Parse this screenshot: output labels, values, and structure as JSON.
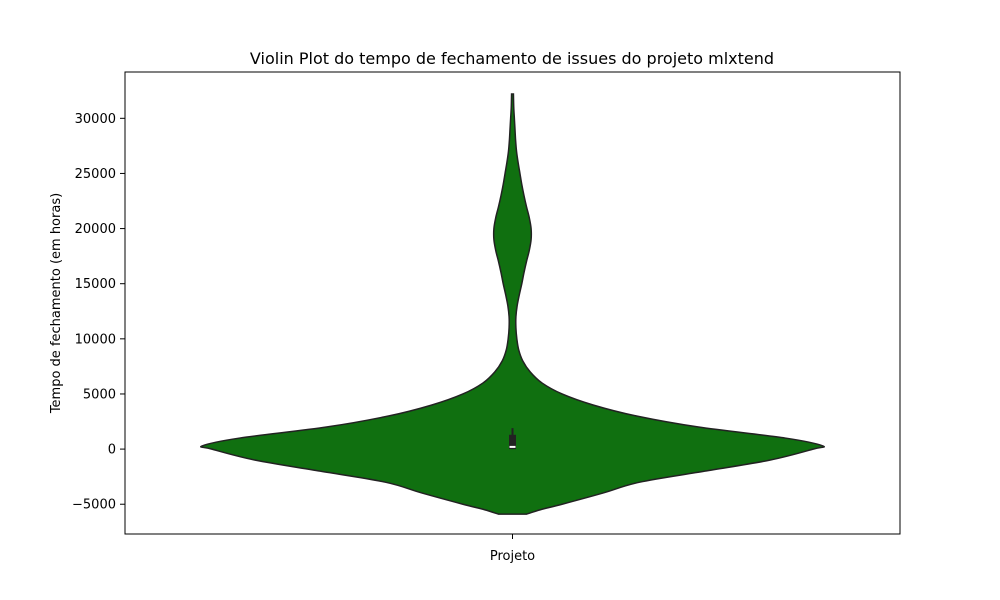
{
  "chart_data": {
    "type": "violin",
    "title": "Violin Plot do tempo de fechamento de issues do projeto mlxtend",
    "xlabel": "",
    "ylabel": "Tempo de fechamento (em horas)",
    "categories": [
      "Projeto"
    ],
    "ylim": [
      -7700,
      34200
    ],
    "yticks": [
      -5000,
      0,
      5000,
      10000,
      15000,
      20000,
      25000,
      30000
    ],
    "grid": false,
    "colors": {
      "fill": "#107010",
      "edge": "#222222",
      "box": "#222222",
      "median": "#ffffff"
    },
    "density_profile": [
      {
        "y": -5900,
        "width": 0.045
      },
      {
        "y": -5500,
        "width": 0.09
      },
      {
        "y": -5000,
        "width": 0.16
      },
      {
        "y": -4000,
        "width": 0.29
      },
      {
        "y": -3000,
        "width": 0.41
      },
      {
        "y": -2000,
        "width": 0.62
      },
      {
        "y": -1000,
        "width": 0.83
      },
      {
        "y": 0,
        "width": 0.97
      },
      {
        "y": 300,
        "width": 1.0
      },
      {
        "y": 1000,
        "width": 0.88
      },
      {
        "y": 2000,
        "width": 0.6
      },
      {
        "y": 3000,
        "width": 0.4
      },
      {
        "y": 4000,
        "width": 0.26
      },
      {
        "y": 5000,
        "width": 0.16
      },
      {
        "y": 6000,
        "width": 0.095
      },
      {
        "y": 7000,
        "width": 0.057
      },
      {
        "y": 8000,
        "width": 0.033
      },
      {
        "y": 9000,
        "width": 0.02
      },
      {
        "y": 10000,
        "width": 0.014
      },
      {
        "y": 11000,
        "width": 0.011
      },
      {
        "y": 12000,
        "width": 0.011
      },
      {
        "y": 13000,
        "width": 0.015
      },
      {
        "y": 14000,
        "width": 0.022
      },
      {
        "y": 15000,
        "width": 0.03
      },
      {
        "y": 16000,
        "width": 0.037
      },
      {
        "y": 17000,
        "width": 0.045
      },
      {
        "y": 18000,
        "width": 0.054
      },
      {
        "y": 19000,
        "width": 0.06
      },
      {
        "y": 20000,
        "width": 0.06
      },
      {
        "y": 21000,
        "width": 0.054
      },
      {
        "y": 22000,
        "width": 0.045
      },
      {
        "y": 23000,
        "width": 0.037
      },
      {
        "y": 24000,
        "width": 0.03
      },
      {
        "y": 25000,
        "width": 0.024
      },
      {
        "y": 26000,
        "width": 0.018
      },
      {
        "y": 27000,
        "width": 0.013
      },
      {
        "y": 28000,
        "width": 0.01
      },
      {
        "y": 29000,
        "width": 0.008
      },
      {
        "y": 30000,
        "width": 0.006
      },
      {
        "y": 31000,
        "width": 0.004
      },
      {
        "y": 32200,
        "width": 0.003
      }
    ],
    "box": {
      "q1": 0,
      "median": 200,
      "q3": 1300,
      "whisker_low": 0,
      "whisker_high": 1900
    }
  }
}
